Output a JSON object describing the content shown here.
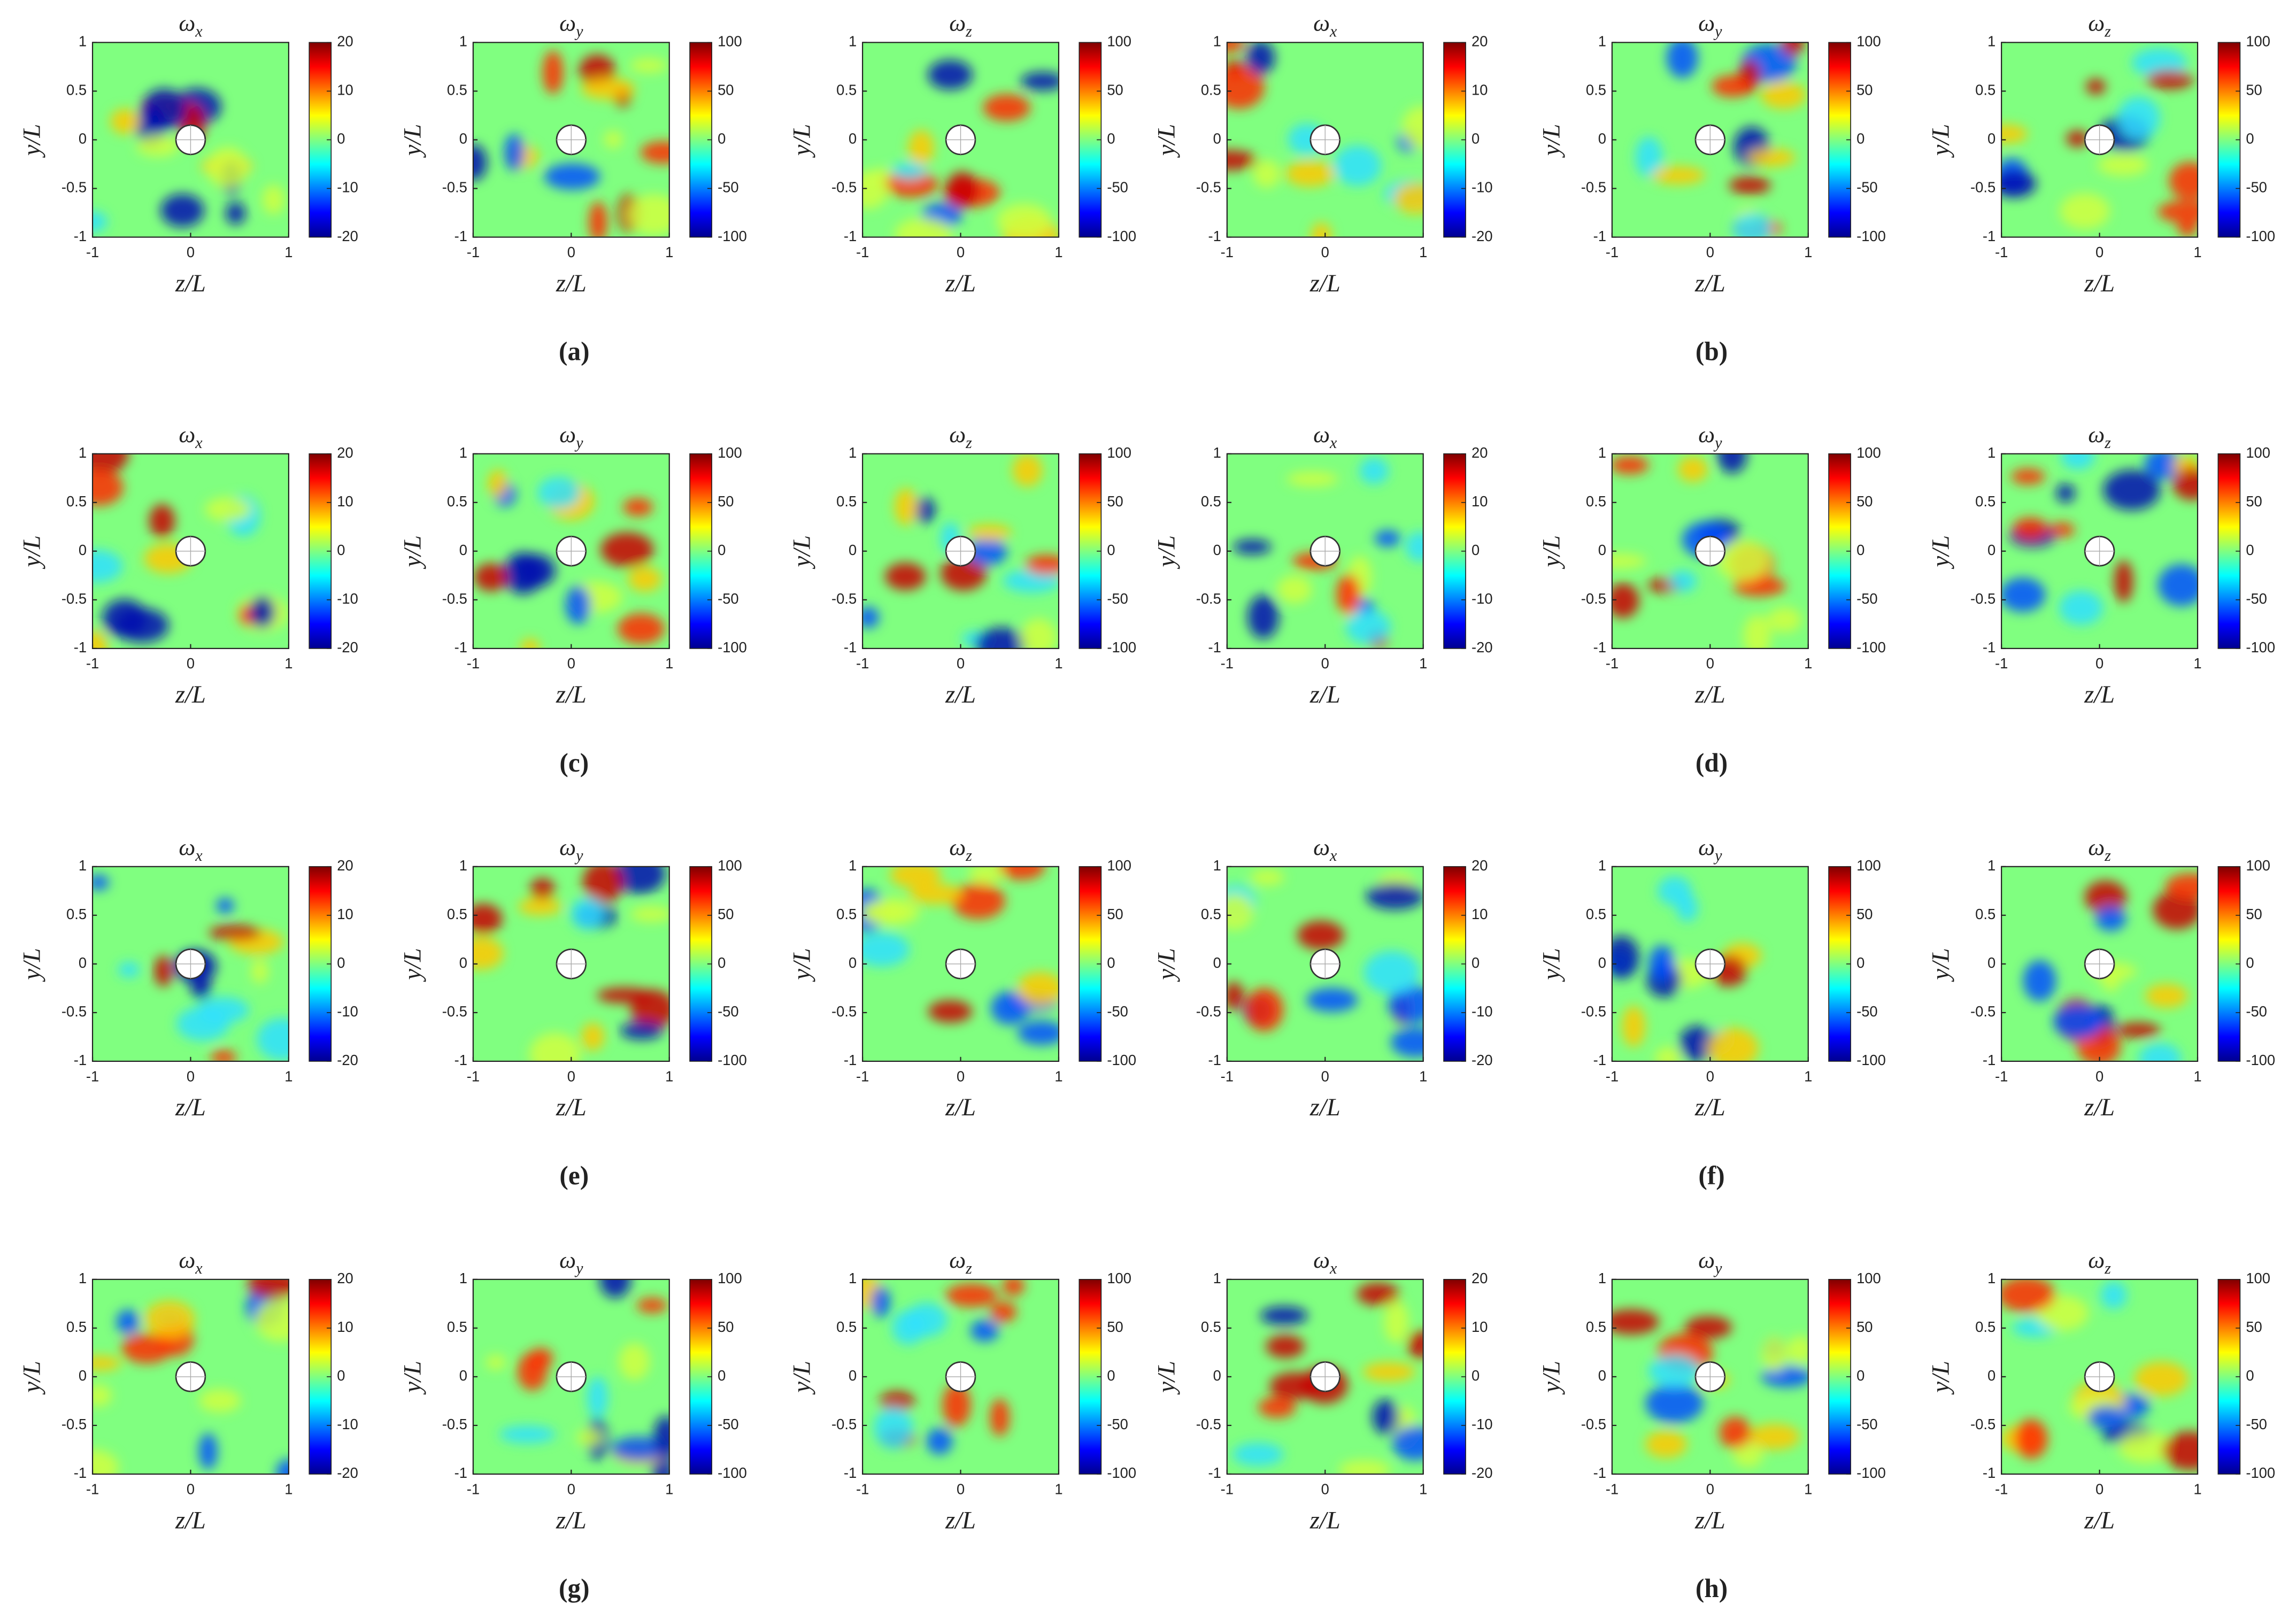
{
  "chart_data": [
    {
      "type": "contour",
      "title": [
        "ω",
        "x"
      ],
      "xlabel": "z/L",
      "ylabel": "y/L",
      "xlim": [
        -1,
        1
      ],
      "ylim": [
        -1,
        1
      ],
      "xticks": [
        -1,
        0,
        1
      ],
      "yticks": [
        -1,
        -0.5,
        0,
        0.5,
        1
      ],
      "clim": [
        -20,
        20
      ],
      "cticks": [
        -20,
        -10,
        0,
        10,
        20
      ]
    },
    {
      "type": "contour",
      "title": [
        "ω",
        "y"
      ],
      "xlabel": "z/L",
      "ylabel": "y/L",
      "xlim": [
        -1,
        1
      ],
      "ylim": [
        -1,
        1
      ],
      "xticks": [
        -1,
        0,
        1
      ],
      "yticks": [
        -1,
        -0.5,
        0,
        0.5,
        1
      ],
      "clim": [
        -100,
        100
      ],
      "cticks": [
        -100,
        -50,
        0,
        50,
        100
      ]
    },
    {
      "type": "contour",
      "title": [
        "ω",
        "z"
      ],
      "xlabel": "z/L",
      "ylabel": "y/L",
      "xlim": [
        -1,
        1
      ],
      "ylim": [
        -1,
        1
      ],
      "xticks": [
        -1,
        0,
        1
      ],
      "yticks": [
        -1,
        -0.5,
        0,
        0.5,
        1
      ],
      "clim": [
        -100,
        100
      ],
      "cticks": [
        -100,
        -50,
        0,
        50,
        100
      ]
    },
    {
      "type": "contour",
      "title": [
        "ω",
        "x"
      ],
      "xlabel": "z/L",
      "ylabel": "y/L",
      "xlim": [
        -1,
        1
      ],
      "ylim": [
        -1,
        1
      ],
      "xticks": [
        -1,
        0,
        1
      ],
      "yticks": [
        -1,
        -0.5,
        0,
        0.5,
        1
      ],
      "clim": [
        -20,
        20
      ],
      "cticks": [
        -20,
        -10,
        0,
        10,
        20
      ]
    },
    {
      "type": "contour",
      "title": [
        "ω",
        "y"
      ],
      "xlabel": "z/L",
      "ylabel": "y/L",
      "xlim": [
        -1,
        1
      ],
      "ylim": [
        -1,
        1
      ],
      "xticks": [
        -1,
        0,
        1
      ],
      "yticks": [
        -1,
        -0.5,
        0,
        0.5,
        1
      ],
      "clim": [
        -100,
        100
      ],
      "cticks": [
        -100,
        -50,
        0,
        50,
        100
      ]
    },
    {
      "type": "contour",
      "title": [
        "ω",
        "z"
      ],
      "xlabel": "z/L",
      "ylabel": "y/L",
      "xlim": [
        -1,
        1
      ],
      "ylim": [
        -1,
        1
      ],
      "xticks": [
        -1,
        0,
        1
      ],
      "yticks": [
        -1,
        -0.5,
        0,
        0.5,
        1
      ],
      "clim": [
        -100,
        100
      ],
      "cticks": [
        -100,
        -50,
        0,
        50,
        100
      ]
    },
    {
      "type": "contour",
      "title": [
        "ω",
        "x"
      ],
      "xlabel": "z/L",
      "ylabel": "y/L",
      "xlim": [
        -1,
        1
      ],
      "ylim": [
        -1,
        1
      ],
      "xticks": [
        -1,
        0,
        1
      ],
      "yticks": [
        -1,
        -0.5,
        0,
        0.5,
        1
      ],
      "clim": [
        -20,
        20
      ],
      "cticks": [
        -20,
        -10,
        0,
        10,
        20
      ]
    },
    {
      "type": "contour",
      "title": [
        "ω",
        "y"
      ],
      "xlabel": "z/L",
      "ylabel": "y/L",
      "xlim": [
        -1,
        1
      ],
      "ylim": [
        -1,
        1
      ],
      "xticks": [
        -1,
        0,
        1
      ],
      "yticks": [
        -1,
        -0.5,
        0,
        0.5,
        1
      ],
      "clim": [
        -100,
        100
      ],
      "cticks": [
        -100,
        -50,
        0,
        50,
        100
      ]
    },
    {
      "type": "contour",
      "title": [
        "ω",
        "z"
      ],
      "xlabel": "z/L",
      "ylabel": "y/L",
      "xlim": [
        -1,
        1
      ],
      "ylim": [
        -1,
        1
      ],
      "xticks": [
        -1,
        0,
        1
      ],
      "yticks": [
        -1,
        -0.5,
        0,
        0.5,
        1
      ],
      "clim": [
        -100,
        100
      ],
      "cticks": [
        -100,
        -50,
        0,
        50,
        100
      ]
    },
    {
      "type": "contour",
      "title": [
        "ω",
        "x"
      ],
      "xlabel": "z/L",
      "ylabel": "y/L",
      "xlim": [
        -1,
        1
      ],
      "ylim": [
        -1,
        1
      ],
      "xticks": [
        -1,
        0,
        1
      ],
      "yticks": [
        -1,
        -0.5,
        0,
        0.5,
        1
      ],
      "clim": [
        -20,
        20
      ],
      "cticks": [
        -20,
        -10,
        0,
        10,
        20
      ]
    },
    {
      "type": "contour",
      "title": [
        "ω",
        "y"
      ],
      "xlabel": "z/L",
      "ylabel": "y/L",
      "xlim": [
        -1,
        1
      ],
      "ylim": [
        -1,
        1
      ],
      "xticks": [
        -1,
        0,
        1
      ],
      "yticks": [
        -1,
        -0.5,
        0,
        0.5,
        1
      ],
      "clim": [
        -100,
        100
      ],
      "cticks": [
        -100,
        -50,
        0,
        50,
        100
      ]
    },
    {
      "type": "contour",
      "title": [
        "ω",
        "z"
      ],
      "xlabel": "z/L",
      "ylabel": "y/L",
      "xlim": [
        -1,
        1
      ],
      "ylim": [
        -1,
        1
      ],
      "xticks": [
        -1,
        0,
        1
      ],
      "yticks": [
        -1,
        -0.5,
        0,
        0.5,
        1
      ],
      "clim": [
        -100,
        100
      ],
      "cticks": [
        -100,
        -50,
        0,
        50,
        100
      ]
    },
    {
      "type": "contour",
      "title": [
        "ω",
        "x"
      ],
      "xlabel": "z/L",
      "ylabel": "y/L",
      "xlim": [
        -1,
        1
      ],
      "ylim": [
        -1,
        1
      ],
      "xticks": [
        -1,
        0,
        1
      ],
      "yticks": [
        -1,
        -0.5,
        0,
        0.5,
        1
      ],
      "clim": [
        -20,
        20
      ],
      "cticks": [
        -20,
        -10,
        0,
        10,
        20
      ]
    },
    {
      "type": "contour",
      "title": [
        "ω",
        "y"
      ],
      "xlabel": "z/L",
      "ylabel": "y/L",
      "xlim": [
        -1,
        1
      ],
      "ylim": [
        -1,
        1
      ],
      "xticks": [
        -1,
        0,
        1
      ],
      "yticks": [
        -1,
        -0.5,
        0,
        0.5,
        1
      ],
      "clim": [
        -100,
        100
      ],
      "cticks": [
        -100,
        -50,
        0,
        50,
        100
      ]
    },
    {
      "type": "contour",
      "title": [
        "ω",
        "z"
      ],
      "xlabel": "z/L",
      "ylabel": "y/L",
      "xlim": [
        -1,
        1
      ],
      "ylim": [
        -1,
        1
      ],
      "xticks": [
        -1,
        0,
        1
      ],
      "yticks": [
        -1,
        -0.5,
        0,
        0.5,
        1
      ],
      "clim": [
        -100,
        100
      ],
      "cticks": [
        -100,
        -50,
        0,
        50,
        100
      ]
    },
    {
      "type": "contour",
      "title": [
        "ω",
        "x"
      ],
      "xlabel": "z/L",
      "ylabel": "y/L",
      "xlim": [
        -1,
        1
      ],
      "ylim": [
        -1,
        1
      ],
      "xticks": [
        -1,
        0,
        1
      ],
      "yticks": [
        -1,
        -0.5,
        0,
        0.5,
        1
      ],
      "clim": [
        -20,
        20
      ],
      "cticks": [
        -20,
        -10,
        0,
        10,
        20
      ]
    },
    {
      "type": "contour",
      "title": [
        "ω",
        "y"
      ],
      "xlabel": "z/L",
      "ylabel": "y/L",
      "xlim": [
        -1,
        1
      ],
      "ylim": [
        -1,
        1
      ],
      "xticks": [
        -1,
        0,
        1
      ],
      "yticks": [
        -1,
        -0.5,
        0,
        0.5,
        1
      ],
      "clim": [
        -100,
        100
      ],
      "cticks": [
        -100,
        -50,
        0,
        50,
        100
      ]
    },
    {
      "type": "contour",
      "title": [
        "ω",
        "z"
      ],
      "xlabel": "z/L",
      "ylabel": "y/L",
      "xlim": [
        -1,
        1
      ],
      "ylim": [
        -1,
        1
      ],
      "xticks": [
        -1,
        0,
        1
      ],
      "yticks": [
        -1,
        -0.5,
        0,
        0.5,
        1
      ],
      "clim": [
        -100,
        100
      ],
      "cticks": [
        -100,
        -50,
        0,
        50,
        100
      ]
    },
    {
      "type": "contour",
      "title": [
        "ω",
        "x"
      ],
      "xlabel": "z/L",
      "ylabel": "y/L",
      "xlim": [
        -1,
        1
      ],
      "ylim": [
        -1,
        1
      ],
      "xticks": [
        -1,
        0,
        1
      ],
      "yticks": [
        -1,
        -0.5,
        0,
        0.5,
        1
      ],
      "clim": [
        -20,
        20
      ],
      "cticks": [
        -20,
        -10,
        0,
        10,
        20
      ]
    },
    {
      "type": "contour",
      "title": [
        "ω",
        "y"
      ],
      "xlabel": "z/L",
      "ylabel": "y/L",
      "xlim": [
        -1,
        1
      ],
      "ylim": [
        -1,
        1
      ],
      "xticks": [
        -1,
        0,
        1
      ],
      "yticks": [
        -1,
        -0.5,
        0,
        0.5,
        1
      ],
      "clim": [
        -100,
        100
      ],
      "cticks": [
        -100,
        -50,
        0,
        50,
        100
      ]
    },
    {
      "type": "contour",
      "title": [
        "ω",
        "z"
      ],
      "xlabel": "z/L",
      "ylabel": "y/L",
      "xlim": [
        -1,
        1
      ],
      "ylim": [
        -1,
        1
      ],
      "xticks": [
        -1,
        0,
        1
      ],
      "yticks": [
        -1,
        -0.5,
        0,
        0.5,
        1
      ],
      "clim": [
        -100,
        100
      ],
      "cticks": [
        -100,
        -50,
        0,
        50,
        100
      ]
    },
    {
      "type": "contour",
      "title": [
        "ω",
        "x"
      ],
      "xlabel": "z/L",
      "ylabel": "y/L",
      "xlim": [
        -1,
        1
      ],
      "ylim": [
        -1,
        1
      ],
      "xticks": [
        -1,
        0,
        1
      ],
      "yticks": [
        -1,
        -0.5,
        0,
        0.5,
        1
      ],
      "clim": [
        -20,
        20
      ],
      "cticks": [
        -20,
        -10,
        0,
        10,
        20
      ]
    },
    {
      "type": "contour",
      "title": [
        "ω",
        "y"
      ],
      "xlabel": "z/L",
      "ylabel": "y/L",
      "xlim": [
        -1,
        1
      ],
      "ylim": [
        -1,
        1
      ],
      "xticks": [
        -1,
        0,
        1
      ],
      "yticks": [
        -1,
        -0.5,
        0,
        0.5,
        1
      ],
      "clim": [
        -100,
        100
      ],
      "cticks": [
        -100,
        -50,
        0,
        50,
        100
      ]
    },
    {
      "type": "contour",
      "title": [
        "ω",
        "z"
      ],
      "xlabel": "z/L",
      "ylabel": "y/L",
      "xlim": [
        -1,
        1
      ],
      "ylim": [
        -1,
        1
      ],
      "xticks": [
        -1,
        0,
        1
      ],
      "yticks": [
        -1,
        -0.5,
        0,
        0.5,
        1
      ],
      "clim": [
        -100,
        100
      ],
      "cticks": [
        -100,
        -50,
        0,
        50,
        100
      ]
    }
  ],
  "figure_labels": [
    "(a)",
    "(b)",
    "(c)",
    "(d)",
    "(e)",
    "(f)",
    "(g)",
    "(h)"
  ]
}
